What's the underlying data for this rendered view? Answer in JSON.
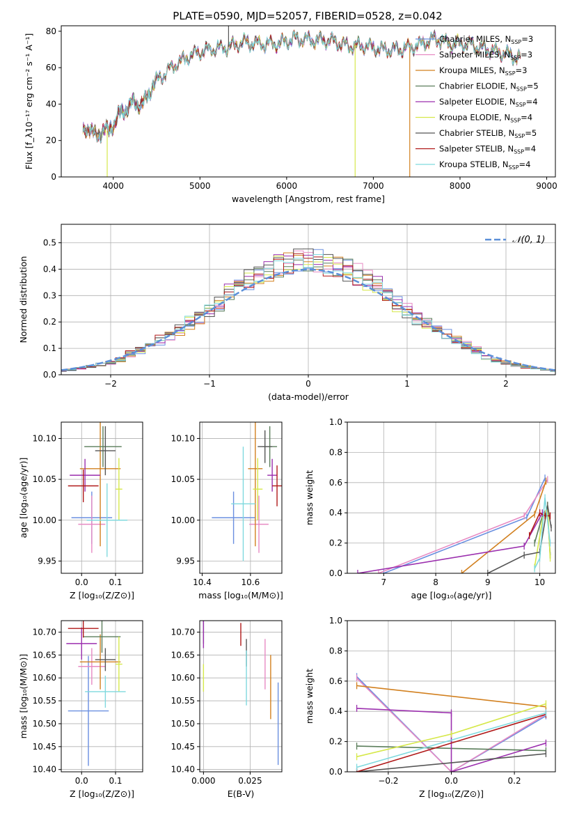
{
  "figure": {
    "title": "PLATE=0590, MJD=52057, FIBERID=0528, z=0.042"
  },
  "colors": {
    "Chabrier MILES": "#6a8fe0",
    "Salpeter MILES": "#e78ac3",
    "Kroupa MILES": "#d2801f",
    "Chabrier ELODIE": "#5a7d5a",
    "Salpeter ELODIE": "#9b2fae",
    "Kroupa ELODIE": "#d6e84a",
    "Chabrier STELIB": "#555555",
    "Salpeter STELIB": "#b01818",
    "Kroupa STELIB": "#7fd9de",
    "gauss": "#5b8fd8"
  },
  "chart_data": [
    {
      "id": "spectrum",
      "type": "line",
      "xlabel": "wavelength [Angstrom, rest frame]",
      "ylabel": "Flux [f_λ10⁻¹⁷ erg cm⁻² s⁻¹ A⁻¹]",
      "xlim": [
        3400,
        9100
      ],
      "ylim": [
        0,
        83
      ],
      "xticks": [
        "4000",
        "5000",
        "6000",
        "7000",
        "8000",
        "9000"
      ],
      "yticks": [
        "0",
        "20",
        "40",
        "60",
        "80"
      ],
      "grid": false,
      "legend_position": "top-right",
      "legend": [
        {
          "label": "Chabrier MILES, N",
          "sub": "SSP",
          "suffix": "=3"
        },
        {
          "label": "Salpeter MILES, N",
          "sub": "SSP",
          "suffix": "=3"
        },
        {
          "label": "Kroupa MILES, N",
          "sub": "SSP",
          "suffix": "=3"
        },
        {
          "label": "Chabrier ELODIE, N",
          "sub": "SSP",
          "suffix": "=5"
        },
        {
          "label": "Salpeter ELODIE, N",
          "sub": "SSP",
          "suffix": "=4"
        },
        {
          "label": "Kroupa ELODIE, N",
          "sub": "SSP",
          "suffix": "=4"
        },
        {
          "label": "Chabrier STELIB, N",
          "sub": "SSP",
          "suffix": "=5"
        },
        {
          "label": "Salpeter STELIB, N",
          "sub": "SSP",
          "suffix": "=4"
        },
        {
          "label": "Kroupa STELIB, N",
          "sub": "SSP",
          "suffix": "=4"
        }
      ],
      "continuum": {
        "x": [
          3650,
          3720,
          3800,
          3880,
          3950,
          4050,
          4150,
          4250,
          4350,
          4450,
          4550,
          4700,
          4900,
          5100,
          5300,
          5500,
          5700,
          5900,
          6100,
          6300,
          6500,
          6700,
          6900,
          7100,
          7300,
          7500,
          7700,
          7900,
          8100,
          8300,
          8500,
          8700
        ],
        "y": [
          24,
          28,
          22,
          26,
          25,
          33,
          38,
          41,
          40,
          50,
          55,
          61,
          67,
          70,
          71,
          74,
          73,
          73,
          76,
          75,
          75,
          72,
          72,
          70,
          70,
          72,
          76,
          73,
          73,
          70,
          68,
          65
        ]
      },
      "spikes": [
        {
          "x": 3930,
          "y": 0
        },
        {
          "x": 5330,
          "y": 83
        },
        {
          "x": 6790,
          "y": 0
        },
        {
          "x": 7420,
          "y": 0
        }
      ]
    },
    {
      "id": "residuals",
      "type": "histogram",
      "xlabel": "(data-model)/error",
      "ylabel": "Normed distribution",
      "xlim": [
        -2.5,
        2.5
      ],
      "ylim": [
        0,
        0.57
      ],
      "xticks": [
        "−2",
        "−1",
        "0",
        "1",
        "2"
      ],
      "yticks": [
        "0.0",
        "0.1",
        "0.2",
        "0.3",
        "0.4",
        "0.5"
      ],
      "grid": true,
      "bin_width": 0.1,
      "legend_label": "𝒩(0, 1)",
      "legend_position": "top-right",
      "gauss_series": "N(0,1) dashed"
    },
    {
      "id": "age-vs-Z",
      "type": "errorbar",
      "xlabel": "Z [log₁₀(Z/Z⊙)]",
      "ylabel": "age  [log₁₀(age/yr)]",
      "xlim": [
        -0.06,
        0.18
      ],
      "ylim": [
        9.935,
        10.12
      ],
      "xticks": [
        "0.0",
        "0.1"
      ],
      "yticks": [
        "9.95",
        "10.00",
        "10.05",
        "10.10"
      ],
      "grid": true,
      "points": [
        {
          "s": "Chabrier MILES",
          "x": 0.03,
          "xe": 0.06,
          "y": 10.003,
          "ye": 0.032
        },
        {
          "s": "Salpeter MILES",
          "x": 0.03,
          "xe": 0.04,
          "y": 9.995,
          "ye": 0.035
        },
        {
          "s": "Kroupa MILES",
          "x": 0.055,
          "xe": 0.06,
          "y": 10.063,
          "ye": 0.095
        },
        {
          "s": "Chabrier ELODIE",
          "x": 0.063,
          "xe": 0.055,
          "y": 10.09,
          "ye": 0.025
        },
        {
          "s": "Salpeter ELODIE",
          "x": 0.01,
          "xe": 0.045,
          "y": 10.055,
          "ye": 0.02
        },
        {
          "s": "Kroupa ELODIE",
          "x": 0.11,
          "xe": 0.01,
          "y": 10.038,
          "ye": 0.038
        },
        {
          "s": "Chabrier STELIB",
          "x": 0.07,
          "xe": 0.03,
          "y": 10.085,
          "ye": 0.03
        },
        {
          "s": "Salpeter STELIB",
          "x": 0.005,
          "xe": 0.045,
          "y": 10.042,
          "ye": 0.02
        },
        {
          "s": "Kroupa STELIB",
          "x": 0.075,
          "xe": 0.06,
          "y": 10.0,
          "ye": 0.045
        }
      ]
    },
    {
      "id": "age-vs-mass",
      "type": "errorbar",
      "xlabel": "mass [log₁₀(M/M⊙)]",
      "ylabel": "",
      "xlim": [
        10.39,
        10.73
      ],
      "ylim": [
        9.935,
        10.12
      ],
      "xticks": [
        "10.4",
        "10.6"
      ],
      "yticks": [
        "9.95",
        "10.00",
        "10.05",
        "10.10"
      ],
      "grid": true,
      "points": [
        {
          "s": "Chabrier MILES",
          "x": 10.53,
          "xe": 0.09,
          "y": 10.003,
          "ye": 0.032
        },
        {
          "s": "Salpeter MILES",
          "x": 10.635,
          "xe": 0.04,
          "y": 9.995,
          "ye": 0.035
        },
        {
          "s": "Kroupa MILES",
          "x": 10.62,
          "xe": 0.03,
          "y": 10.063,
          "ye": 0.095
        },
        {
          "s": "Chabrier ELODIE",
          "x": 10.68,
          "xe": 0.03,
          "y": 10.09,
          "ye": 0.025
        },
        {
          "s": "Salpeter ELODIE",
          "x": 10.69,
          "xe": 0.02,
          "y": 10.055,
          "ye": 0.02
        },
        {
          "s": "Kroupa ELODIE",
          "x": 10.63,
          "xe": 0.02,
          "y": 10.038,
          "ye": 0.038
        },
        {
          "s": "Chabrier STELIB",
          "x": 10.66,
          "xe": 0.03,
          "y": 10.09,
          "ye": 0.02
        },
        {
          "s": "Salpeter STELIB",
          "x": 10.71,
          "xe": 0.02,
          "y": 10.042,
          "ye": 0.025
        },
        {
          "s": "Kroupa STELIB",
          "x": 10.57,
          "xe": 0.05,
          "y": 10.02,
          "ye": 0.07
        }
      ]
    },
    {
      "id": "weight-vs-age",
      "type": "line",
      "xlabel": "age  [log₁₀(age/yr)]",
      "ylabel": "mass weight",
      "xlim": [
        6.3,
        10.3
      ],
      "ylim": [
        0,
        1
      ],
      "xticks": [
        "7",
        "8",
        "9",
        "10"
      ],
      "yticks": [
        "0.0",
        "0.2",
        "0.4",
        "0.6",
        "0.8",
        "1.0"
      ],
      "grid": true,
      "series": [
        {
          "s": "Chabrier MILES",
          "x": [
            7.0,
            9.75,
            10.1
          ],
          "y": [
            0.0,
            0.37,
            0.63
          ]
        },
        {
          "s": "Salpeter MILES",
          "x": [
            6.9,
            9.7,
            10.15
          ],
          "y": [
            0.0,
            0.38,
            0.62
          ]
        },
        {
          "s": "Kroupa MILES",
          "x": [
            8.5,
            9.9,
            10.12
          ],
          "y": [
            0.0,
            0.39,
            0.61
          ]
        },
        {
          "s": "Chabrier ELODIE",
          "x": [
            9.9,
            10.05,
            10.15,
            10.2
          ],
          "y": [
            0.2,
            0.38,
            0.4,
            0.12
          ]
        },
        {
          "s": "Salpeter ELODIE",
          "x": [
            6.5,
            9.7,
            10.05,
            10.15
          ],
          "y": [
            0.0,
            0.18,
            0.4,
            0.42
          ]
        },
        {
          "s": "Kroupa ELODIE",
          "x": [
            9.9,
            10.05,
            10.15,
            10.2
          ],
          "y": [
            0.04,
            0.35,
            0.45,
            0.1
          ]
        },
        {
          "s": "Chabrier STELIB",
          "x": [
            9.0,
            9.7,
            10.0,
            10.15,
            10.22
          ],
          "y": [
            0.0,
            0.12,
            0.14,
            0.45,
            0.3
          ]
        },
        {
          "s": "Salpeter STELIB",
          "x": [
            9.8,
            10.0,
            10.1,
            10.2
          ],
          "y": [
            0.25,
            0.4,
            0.38,
            0.38
          ]
        },
        {
          "s": "Kroupa STELIB",
          "x": [
            9.9,
            10.0,
            10.1,
            10.2
          ],
          "y": [
            0.03,
            0.1,
            0.5,
            0.2
          ]
        }
      ]
    },
    {
      "id": "mass-vs-Z",
      "type": "errorbar",
      "xlabel": "Z [log₁₀(Z/Z⊙)]",
      "ylabel": "mass [log₁₀(M/M⊙)]",
      "xlim": [
        -0.06,
        0.18
      ],
      "ylim": [
        10.395,
        10.725
      ],
      "xticks": [
        "0.0",
        "0.1"
      ],
      "yticks": [
        "10.40",
        "10.45",
        "10.50",
        "10.55",
        "10.60",
        "10.65",
        "10.70"
      ],
      "grid": true,
      "points": [
        {
          "s": "Chabrier MILES",
          "x": 0.02,
          "xe": 0.06,
          "y": 10.528,
          "ye": 0.12
        },
        {
          "s": "Salpeter MILES",
          "x": 0.03,
          "xe": 0.04,
          "y": 10.625,
          "ye": 0.04
        },
        {
          "s": "Kroupa MILES",
          "x": 0.055,
          "xe": 0.06,
          "y": 10.635,
          "ye": 0.06
        },
        {
          "s": "Chabrier ELODIE",
          "x": 0.06,
          "xe": 0.055,
          "y": 10.69,
          "ye": 0.035
        },
        {
          "s": "Salpeter ELODIE",
          "x": 0.0,
          "xe": 0.045,
          "y": 10.675,
          "ye": 0.035
        },
        {
          "s": "Kroupa ELODIE",
          "x": 0.11,
          "xe": 0.01,
          "y": 10.63,
          "ye": 0.06
        },
        {
          "s": "Chabrier STELIB",
          "x": 0.07,
          "xe": 0.03,
          "y": 10.64,
          "ye": 0.025
        },
        {
          "s": "Salpeter STELIB",
          "x": 0.005,
          "xe": 0.045,
          "y": 10.708,
          "ye": 0.02
        },
        {
          "s": "Kroupa STELIB",
          "x": 0.07,
          "xe": 0.06,
          "y": 10.57,
          "ye": 0.035
        }
      ]
    },
    {
      "id": "mass-vs-EBV",
      "type": "errorbar",
      "xlabel": "E(B-V)",
      "ylabel": "",
      "xlim": [
        -0.002,
        0.042
      ],
      "ylim": [
        10.395,
        10.725
      ],
      "xticks": [
        "0.000",
        "0.025"
      ],
      "yticks": [
        "10.40",
        "10.45",
        "10.50",
        "10.55",
        "10.60",
        "10.65",
        "10.70"
      ],
      "grid": true,
      "points": [
        {
          "s": "Chabrier MILES",
          "x": 0.04,
          "xe": 0.0,
          "y": 10.5,
          "ye": 0.09
        },
        {
          "s": "Salpeter MILES",
          "x": 0.033,
          "xe": 0.0,
          "y": 10.63,
          "ye": 0.055
        },
        {
          "s": "Kroupa MILES",
          "x": 0.036,
          "xe": 0.0,
          "y": 10.58,
          "ye": 0.07
        },
        {
          "s": "Chabrier ELODIE",
          "x": 0.0,
          "xe": 0.0,
          "y": 10.7,
          "ye": 0.025
        },
        {
          "s": "Salpeter ELODIE",
          "x": 0.0,
          "xe": 0.0,
          "y": 10.695,
          "ye": 0.03
        },
        {
          "s": "Kroupa ELODIE",
          "x": 0.0,
          "xe": 0.0,
          "y": 10.6,
          "ye": 0.03
        },
        {
          "s": "Chabrier STELIB",
          "x": 0.023,
          "xe": 0.0,
          "y": 10.655,
          "ye": 0.03
        },
        {
          "s": "Salpeter STELIB",
          "x": 0.02,
          "xe": 0.0,
          "y": 10.695,
          "ye": 0.025
        },
        {
          "s": "Kroupa STELIB",
          "x": 0.023,
          "xe": 0.0,
          "y": 10.6,
          "ye": 0.06
        }
      ]
    },
    {
      "id": "weight-vs-Z",
      "type": "line",
      "xlabel": "Z [log₁₀(Z/Z⊙)]",
      "ylabel": "mass weight",
      "xlim": [
        -0.33,
        0.33
      ],
      "ylim": [
        0,
        1
      ],
      "xticks": [
        "−0.2",
        "0.0",
        "0.2"
      ],
      "yticks": [
        "0.0",
        "0.2",
        "0.4",
        "0.6",
        "0.8",
        "1.0"
      ],
      "grid": true,
      "series": [
        {
          "s": "Chabrier MILES",
          "x": [
            -0.3,
            0.0,
            0.3
          ],
          "y": [
            0.63,
            0.0,
            0.37
          ]
        },
        {
          "s": "Salpeter MILES",
          "x": [
            -0.3,
            0.0,
            0.3
          ],
          "y": [
            0.62,
            0.0,
            0.38
          ]
        },
        {
          "s": "Kroupa MILES",
          "x": [
            -0.3,
            0.3
          ],
          "y": [
            0.57,
            0.43
          ]
        },
        {
          "s": "Chabrier ELODIE",
          "x": [
            -0.3,
            0.3
          ],
          "y": [
            0.17,
            0.14
          ]
        },
        {
          "s": "Salpeter ELODIE",
          "x": [
            -0.3,
            0.0,
            0.0,
            0.3
          ],
          "y": [
            0.42,
            0.39,
            0.0,
            0.19
          ]
        },
        {
          "s": "Kroupa ELODIE",
          "x": [
            -0.3,
            0.0,
            0.3
          ],
          "y": [
            0.1,
            0.25,
            0.45
          ]
        },
        {
          "s": "Chabrier STELIB",
          "x": [
            -0.3,
            0.3
          ],
          "y": [
            0.0,
            0.12
          ]
        },
        {
          "s": "Salpeter STELIB",
          "x": [
            -0.3,
            0.3
          ],
          "y": [
            0.0,
            0.38
          ]
        },
        {
          "s": "Kroupa STELIB",
          "x": [
            -0.3,
            0.3
          ],
          "y": [
            0.03,
            0.39
          ]
        }
      ]
    }
  ]
}
